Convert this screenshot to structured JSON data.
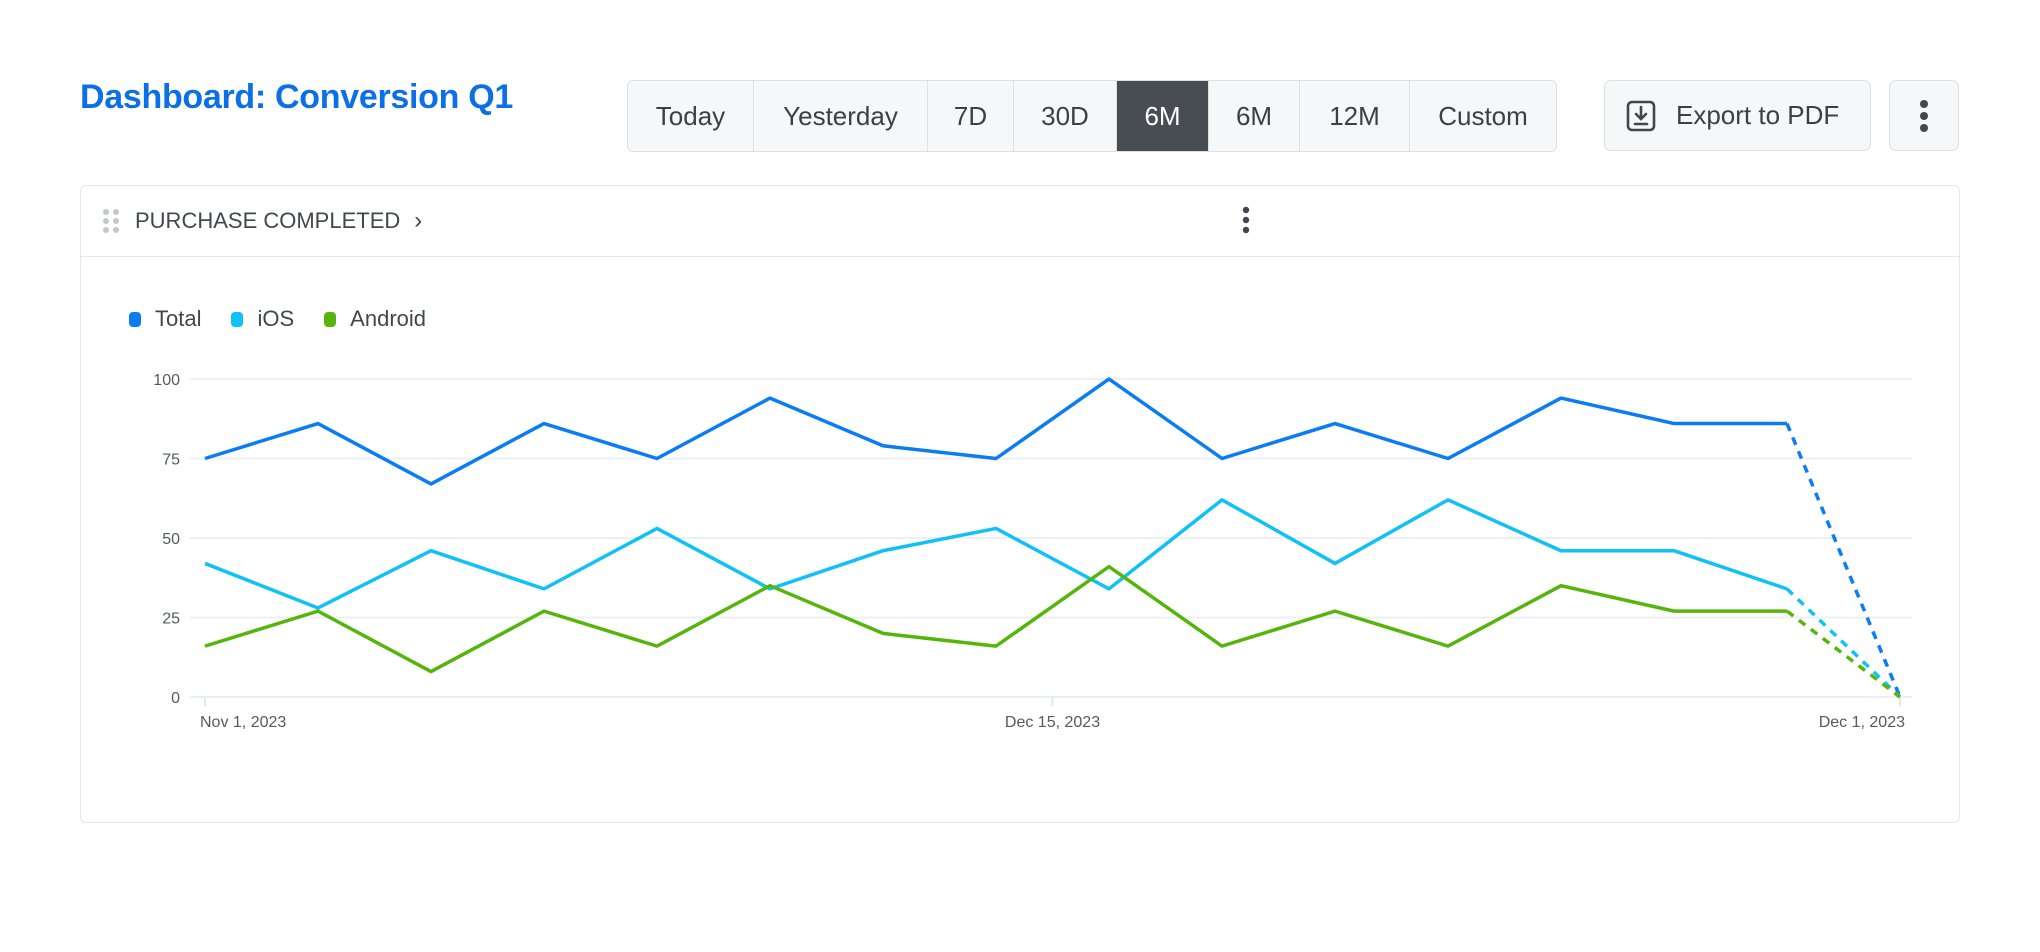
{
  "header": {
    "title": "Dashboard: Conversion Q1",
    "ranges": [
      {
        "label": "Today",
        "active": false
      },
      {
        "label": "Yesterday",
        "active": false
      },
      {
        "label": "7D",
        "active": false
      },
      {
        "label": "30D",
        "active": false
      },
      {
        "label": "6M",
        "active": true
      },
      {
        "label": "6M",
        "active": false
      },
      {
        "label": "12M",
        "active": false
      },
      {
        "label": "Custom",
        "active": false
      }
    ],
    "export_label": "Export to PDF",
    "export_icon": "download-icon",
    "more_icon": "kebab-icon"
  },
  "card": {
    "title": "PURCHASE COMPLETED",
    "chevron": "›",
    "drag_icon": "drag-handle-icon",
    "more_icon": "kebab-icon"
  },
  "chart_data": {
    "type": "line",
    "title": "",
    "xlabel": "",
    "ylabel": "",
    "ylim": [
      0,
      100
    ],
    "yticks": [
      0,
      25,
      50,
      75,
      100
    ],
    "grid": true,
    "legend_placement": "top-left",
    "x_tick_labels": [
      {
        "label": "Nov 1, 2023",
        "index": 0
      },
      {
        "label": "Dec 15, 2023",
        "index": 7.5
      },
      {
        "label": "Dec 1, 2023",
        "index": 15
      }
    ],
    "dashed_last_segment": true,
    "series": [
      {
        "name": "Total",
        "color": "#0a7cf5",
        "values": [
          75,
          86,
          67,
          86,
          75,
          94,
          79,
          75,
          100,
          75,
          86,
          75,
          94,
          86,
          86,
          0
        ]
      },
      {
        "name": "iOS",
        "color": "#0fc1f7",
        "values": [
          42,
          28,
          46,
          34,
          53,
          34,
          46,
          53,
          34,
          62,
          42,
          62,
          46,
          46,
          34,
          0
        ]
      },
      {
        "name": "Android",
        "color": "#55b50a",
        "values": [
          16,
          27,
          8,
          27,
          16,
          35,
          20,
          16,
          41,
          16,
          27,
          16,
          35,
          27,
          27,
          0
        ]
      }
    ]
  }
}
